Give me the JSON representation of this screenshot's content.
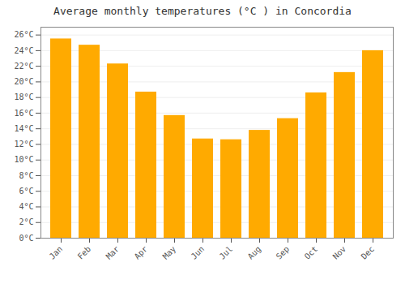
{
  "chart_data": {
    "type": "bar",
    "title": "Average monthly temperatures (°C ) in Concordia",
    "categories": [
      "Jan",
      "Feb",
      "Mar",
      "Apr",
      "May",
      "Jun",
      "Jul",
      "Aug",
      "Sep",
      "Oct",
      "Nov",
      "Dec"
    ],
    "values": [
      25.5,
      24.7,
      22.3,
      18.7,
      15.7,
      12.7,
      12.6,
      13.8,
      15.3,
      18.6,
      21.2,
      24.0
    ],
    "color": "#FFAA00",
    "ylim": [
      0,
      27
    ],
    "yticks": [
      {
        "value": 0,
        "label": "0°C"
      },
      {
        "value": 2,
        "label": "2°C"
      },
      {
        "value": 4,
        "label": "4°C"
      },
      {
        "value": 6,
        "label": "6°C"
      },
      {
        "value": 8,
        "label": "8°C"
      },
      {
        "value": 10,
        "label": "10°C"
      },
      {
        "value": 12,
        "label": "12°C"
      },
      {
        "value": 14,
        "label": "14°C"
      },
      {
        "value": 16,
        "label": "16°C"
      },
      {
        "value": 18,
        "label": "18°C"
      },
      {
        "value": 20,
        "label": "20°C"
      },
      {
        "value": 22,
        "label": "22°C"
      },
      {
        "value": 24,
        "label": "24°C"
      },
      {
        "value": 26,
        "label": "26°C"
      }
    ],
    "grid": true
  }
}
